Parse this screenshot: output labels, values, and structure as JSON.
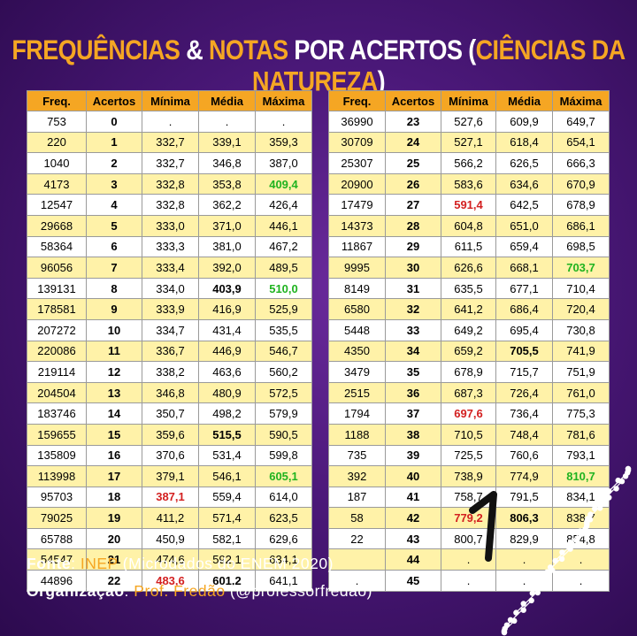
{
  "title": {
    "part1": "FREQUÊNCIAS",
    "amp": " & ",
    "part2": "NOTAS",
    "part3": " POR ACERTOS (",
    "part4": "CIÊNCIAS DA NATUREZA",
    "part5": ")"
  },
  "headers": [
    "Freq.",
    "Acertos",
    "Mínima",
    "Média",
    "Máxima"
  ],
  "left_rows": [
    {
      "freq": "753",
      "acertos": "0",
      "min": ".",
      "media": ".",
      "max": "."
    },
    {
      "freq": "220",
      "acertos": "1",
      "min": "332,7",
      "media": "339,1",
      "max": "359,3"
    },
    {
      "freq": "1040",
      "acertos": "2",
      "min": "332,7",
      "media": "346,8",
      "max": "387,0"
    },
    {
      "freq": "4173",
      "acertos": "3",
      "min": "332,8",
      "media": "353,8",
      "max": "409,4",
      "max_hl": "green"
    },
    {
      "freq": "12547",
      "acertos": "4",
      "min": "332,8",
      "media": "362,2",
      "max": "426,4"
    },
    {
      "freq": "29668",
      "acertos": "5",
      "min": "333,0",
      "media": "371,0",
      "max": "446,1"
    },
    {
      "freq": "58364",
      "acertos": "6",
      "min": "333,3",
      "media": "381,0",
      "max": "467,2"
    },
    {
      "freq": "96056",
      "acertos": "7",
      "min": "333,4",
      "media": "392,0",
      "max": "489,5"
    },
    {
      "freq": "139131",
      "acertos": "8",
      "min": "334,0",
      "media": "403,9",
      "max": "510,0",
      "media_hl": "bold",
      "max_hl": "green"
    },
    {
      "freq": "178581",
      "acertos": "9",
      "min": "333,9",
      "media": "416,9",
      "max": "525,9"
    },
    {
      "freq": "207272",
      "acertos": "10",
      "min": "334,7",
      "media": "431,4",
      "max": "535,5"
    },
    {
      "freq": "220086",
      "acertos": "11",
      "min": "336,7",
      "media": "446,9",
      "max": "546,7"
    },
    {
      "freq": "219114",
      "acertos": "12",
      "min": "338,2",
      "media": "463,6",
      "max": "560,2"
    },
    {
      "freq": "204504",
      "acertos": "13",
      "min": "346,8",
      "media": "480,9",
      "max": "572,5"
    },
    {
      "freq": "183746",
      "acertos": "14",
      "min": "350,7",
      "media": "498,2",
      "max": "579,9"
    },
    {
      "freq": "159655",
      "acertos": "15",
      "min": "359,6",
      "media": "515,5",
      "max": "590,5",
      "media_hl": "bold"
    },
    {
      "freq": "135809",
      "acertos": "16",
      "min": "370,6",
      "media": "531,4",
      "max": "599,8"
    },
    {
      "freq": "113998",
      "acertos": "17",
      "min": "379,1",
      "media": "546,1",
      "max": "605,1",
      "max_hl": "green"
    },
    {
      "freq": "95703",
      "acertos": "18",
      "min": "387,1",
      "media": "559,4",
      "max": "614,0",
      "min_hl": "red"
    },
    {
      "freq": "79025",
      "acertos": "19",
      "min": "411,2",
      "media": "571,4",
      "max": "623,5"
    },
    {
      "freq": "65788",
      "acertos": "20",
      "min": "450,9",
      "media": "582,1",
      "max": "629,6"
    },
    {
      "freq": "54547",
      "acertos": "21",
      "min": "474,6",
      "media": "592,1",
      "max": "634,1"
    },
    {
      "freq": "44896",
      "acertos": "22",
      "min": "483,6",
      "media": "601,2",
      "max": "641,1",
      "min_hl": "red",
      "media_hl": "bold"
    }
  ],
  "right_rows": [
    {
      "freq": "36990",
      "acertos": "23",
      "min": "527,6",
      "media": "609,9",
      "max": "649,7"
    },
    {
      "freq": "30709",
      "acertos": "24",
      "min": "527,1",
      "media": "618,4",
      "max": "654,1"
    },
    {
      "freq": "25307",
      "acertos": "25",
      "min": "566,2",
      "media": "626,5",
      "max": "666,3"
    },
    {
      "freq": "20900",
      "acertos": "26",
      "min": "583,6",
      "media": "634,6",
      "max": "670,9"
    },
    {
      "freq": "17479",
      "acertos": "27",
      "min": "591,4",
      "media": "642,5",
      "max": "678,9",
      "min_hl": "red"
    },
    {
      "freq": "14373",
      "acertos": "28",
      "min": "604,8",
      "media": "651,0",
      "max": "686,1"
    },
    {
      "freq": "11867",
      "acertos": "29",
      "min": "611,5",
      "media": "659,4",
      "max": "698,5"
    },
    {
      "freq": "9995",
      "acertos": "30",
      "min": "626,6",
      "media": "668,1",
      "max": "703,7",
      "max_hl": "green"
    },
    {
      "freq": "8149",
      "acertos": "31",
      "min": "635,5",
      "media": "677,1",
      "max": "710,4"
    },
    {
      "freq": "6580",
      "acertos": "32",
      "min": "641,2",
      "media": "686,4",
      "max": "720,4"
    },
    {
      "freq": "5448",
      "acertos": "33",
      "min": "649,2",
      "media": "695,4",
      "max": "730,8"
    },
    {
      "freq": "4350",
      "acertos": "34",
      "min": "659,2",
      "media": "705,5",
      "max": "741,9",
      "media_hl": "bold"
    },
    {
      "freq": "3479",
      "acertos": "35",
      "min": "678,9",
      "media": "715,7",
      "max": "751,9"
    },
    {
      "freq": "2515",
      "acertos": "36",
      "min": "687,3",
      "media": "726,4",
      "max": "761,0"
    },
    {
      "freq": "1794",
      "acertos": "37",
      "min": "697,6",
      "media": "736,4",
      "max": "775,3",
      "min_hl": "red"
    },
    {
      "freq": "1188",
      "acertos": "38",
      "min": "710,5",
      "media": "748,4",
      "max": "781,6"
    },
    {
      "freq": "735",
      "acertos": "39",
      "min": "725,5",
      "media": "760,6",
      "max": "793,1"
    },
    {
      "freq": "392",
      "acertos": "40",
      "min": "738,9",
      "media": "774,9",
      "max": "810,7",
      "max_hl": "green"
    },
    {
      "freq": "187",
      "acertos": "41",
      "min": "758,7",
      "media": "791,5",
      "max": "834,1"
    },
    {
      "freq": "58",
      "acertos": "42",
      "min": "779,2",
      "media": "806,3",
      "max": "838,7",
      "min_hl": "red",
      "media_hl": "bold"
    },
    {
      "freq": "22",
      "acertos": "43",
      "min": "800,7",
      "media": "829,9",
      "max": "854,8"
    },
    {
      "freq": "",
      "acertos": "44",
      "min": ".",
      "media": ".",
      "max": "."
    },
    {
      "freq": ".",
      "acertos": "45",
      "min": ".",
      "media": ".",
      "max": "."
    }
  ],
  "footer": {
    "source_label": "Fonte",
    "source_sep": ": ",
    "source_value": "INEP",
    "source_detail": " (Microdados do ENEM 2020)",
    "org_label": "Organização",
    "org_sep": ": ",
    "org_value": "Prof. Fredão",
    "org_detail": " (@professorfredao)"
  },
  "colors": {
    "accent": "#f5a623",
    "header_bg": "#f5a623",
    "row_alt": "#fff2a8",
    "red": "#d32020",
    "green": "#1fb31f",
    "background": "#4a1878"
  },
  "icons": {
    "handwritten_mark": "numeral-one-mark",
    "decoration": "dna-helix-icon"
  }
}
